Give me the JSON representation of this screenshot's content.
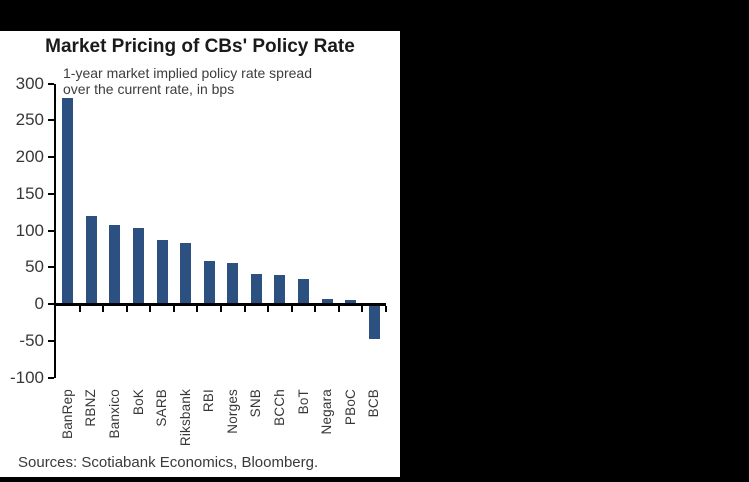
{
  "window": {
    "frame_color": "#000000",
    "panel_color": "#ffffff"
  },
  "header": {
    "title": "Market Pricing of CBs' Policy Rate"
  },
  "annotation": {
    "line1": "1-year market implied policy rate spread",
    "line2": "over the current rate, in bps"
  },
  "footer": {
    "source": "Sources: Scotiabank Economics, Bloomberg."
  },
  "chart_data": {
    "type": "bar",
    "title": "Market Pricing of CBs' Policy Rate",
    "subtitle": "1-year market implied policy rate spread over the current rate, in bps",
    "xlabel": "",
    "ylabel": "bps",
    "categories": [
      "BanRep",
      "RBNZ",
      "Banxico",
      "BoK",
      "SARB",
      "Riksbank",
      "RBI",
      "Norges",
      "SNB",
      "BCCh",
      "BoT",
      "Negara",
      "PBoC",
      "BCB"
    ],
    "values": [
      280,
      120,
      108,
      104,
      87,
      83,
      59,
      56,
      41,
      40,
      34,
      7,
      5,
      -48
    ],
    "ylim": [
      -100,
      300
    ],
    "yticks": [
      300,
      250,
      200,
      150,
      100,
      50,
      0,
      -50,
      -100
    ],
    "grid": false,
    "legend": false,
    "bar_color": "#2C5080",
    "axis_color": "#000000",
    "label_color": "#383838"
  }
}
